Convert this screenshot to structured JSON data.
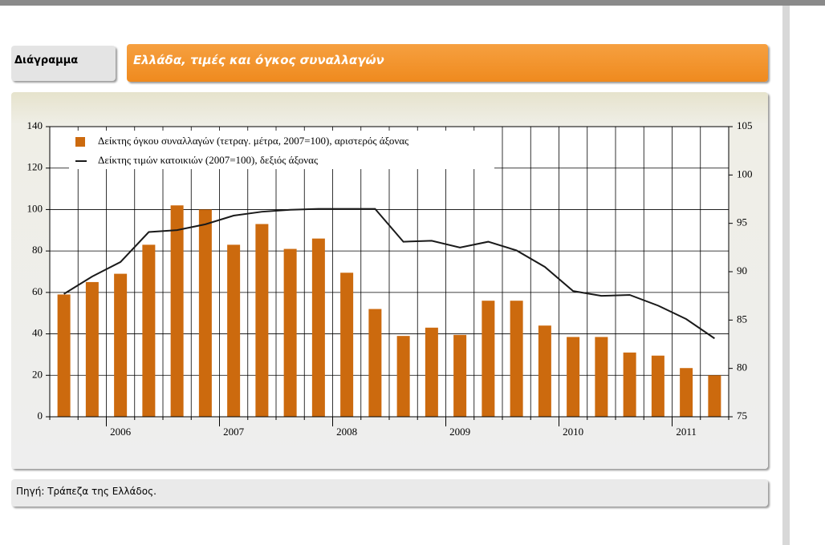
{
  "header": {
    "label": "Διάγραμμα",
    "title": "Ελλάδα, τιμές και όγκος συναλλαγών"
  },
  "chart_data": {
    "type": "bar",
    "categories": [
      null,
      null,
      null,
      null,
      null,
      null,
      null,
      null,
      null,
      null,
      null,
      null,
      null,
      null,
      null,
      null,
      null,
      null,
      null,
      null,
      null,
      null,
      null,
      null
    ],
    "year_labels": [
      "2006",
      "2007",
      "2008",
      "2009",
      "2010",
      "2011"
    ],
    "series": [
      {
        "name": "Δείκτης όγκου συναλλαγών (τετραγ. μέτρα, 2007=100), αριστερός άξονας",
        "type": "bar",
        "color": "#cc6a0e",
        "values": [
          59,
          65,
          69,
          83,
          102,
          100,
          83,
          93,
          81,
          86,
          69.5,
          52,
          39,
          43,
          39.5,
          56,
          56,
          44,
          38.5,
          38.5,
          31,
          29.5,
          23.5,
          20
        ]
      },
      {
        "name": "Δείκτης τιμών κατοικιών (2007=100), δεξιός άξονας",
        "type": "line",
        "axis": "y2",
        "color": "#1a1a1a",
        "values": [
          87.7,
          89.5,
          91.0,
          94.1,
          94.3,
          94.9,
          95.8,
          96.2,
          96.4,
          96.5,
          96.5,
          96.5,
          93.1,
          93.2,
          92.5,
          93.1,
          92.2,
          90.5,
          88.0,
          87.5,
          87.6,
          86.5,
          85.1,
          83.1
        ]
      }
    ],
    "ylim": [
      0,
      140
    ],
    "yticks": [
      0,
      20,
      40,
      60,
      80,
      100,
      120,
      140
    ],
    "y2lim": [
      75,
      105
    ],
    "y2ticks": [
      75,
      80,
      85,
      90,
      95,
      100,
      105
    ],
    "grid": true
  },
  "footer": {
    "source": "Πηγή: Τράπεζα της Ελλάδος."
  }
}
